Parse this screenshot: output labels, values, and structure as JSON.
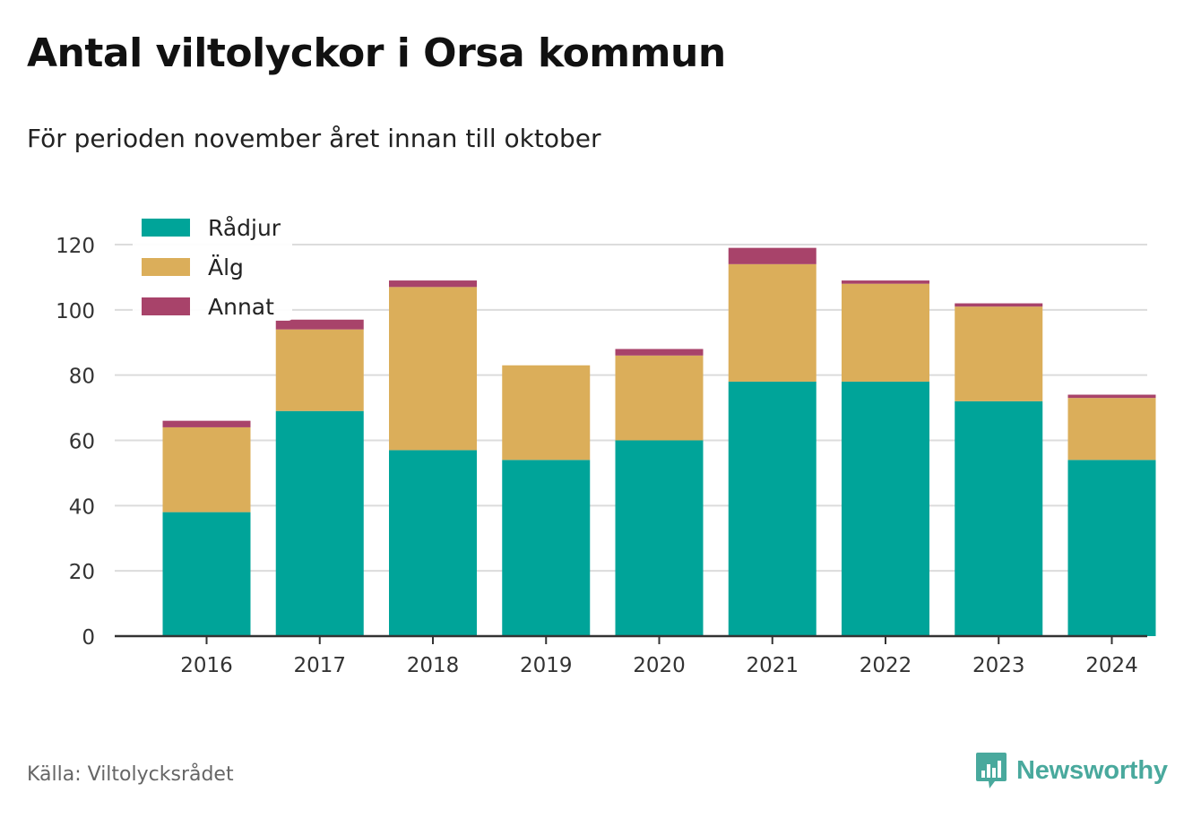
{
  "title": "Antal viltolyckor i Orsa kommun",
  "subtitle": "För perioden november året innan till oktober",
  "source": "Källa: Viltolycksrådet",
  "brand": {
    "name": "Newsworthy",
    "icon": "newsworthy-logo-icon",
    "color": "#49a99d"
  },
  "chart_data": {
    "type": "bar",
    "stacked": true,
    "categories": [
      "2016",
      "2017",
      "2018",
      "2019",
      "2020",
      "2021",
      "2022",
      "2023",
      "2024"
    ],
    "series": [
      {
        "name": "Rådjur",
        "color": "#00a499",
        "values": [
          38,
          69,
          57,
          54,
          60,
          78,
          78,
          72,
          54
        ]
      },
      {
        "name": "Älg",
        "color": "#dbae5a",
        "values": [
          26,
          25,
          50,
          29,
          26,
          36,
          30,
          29,
          19
        ]
      },
      {
        "name": "Annat",
        "color": "#a8436a",
        "values": [
          2,
          3,
          2,
          0,
          2,
          5,
          1,
          1,
          1
        ]
      }
    ],
    "ylim": [
      0,
      120
    ],
    "yticks": [
      "0",
      "20",
      "40",
      "60",
      "80",
      "100",
      "120"
    ],
    "grid": true,
    "legend": "top-left"
  }
}
